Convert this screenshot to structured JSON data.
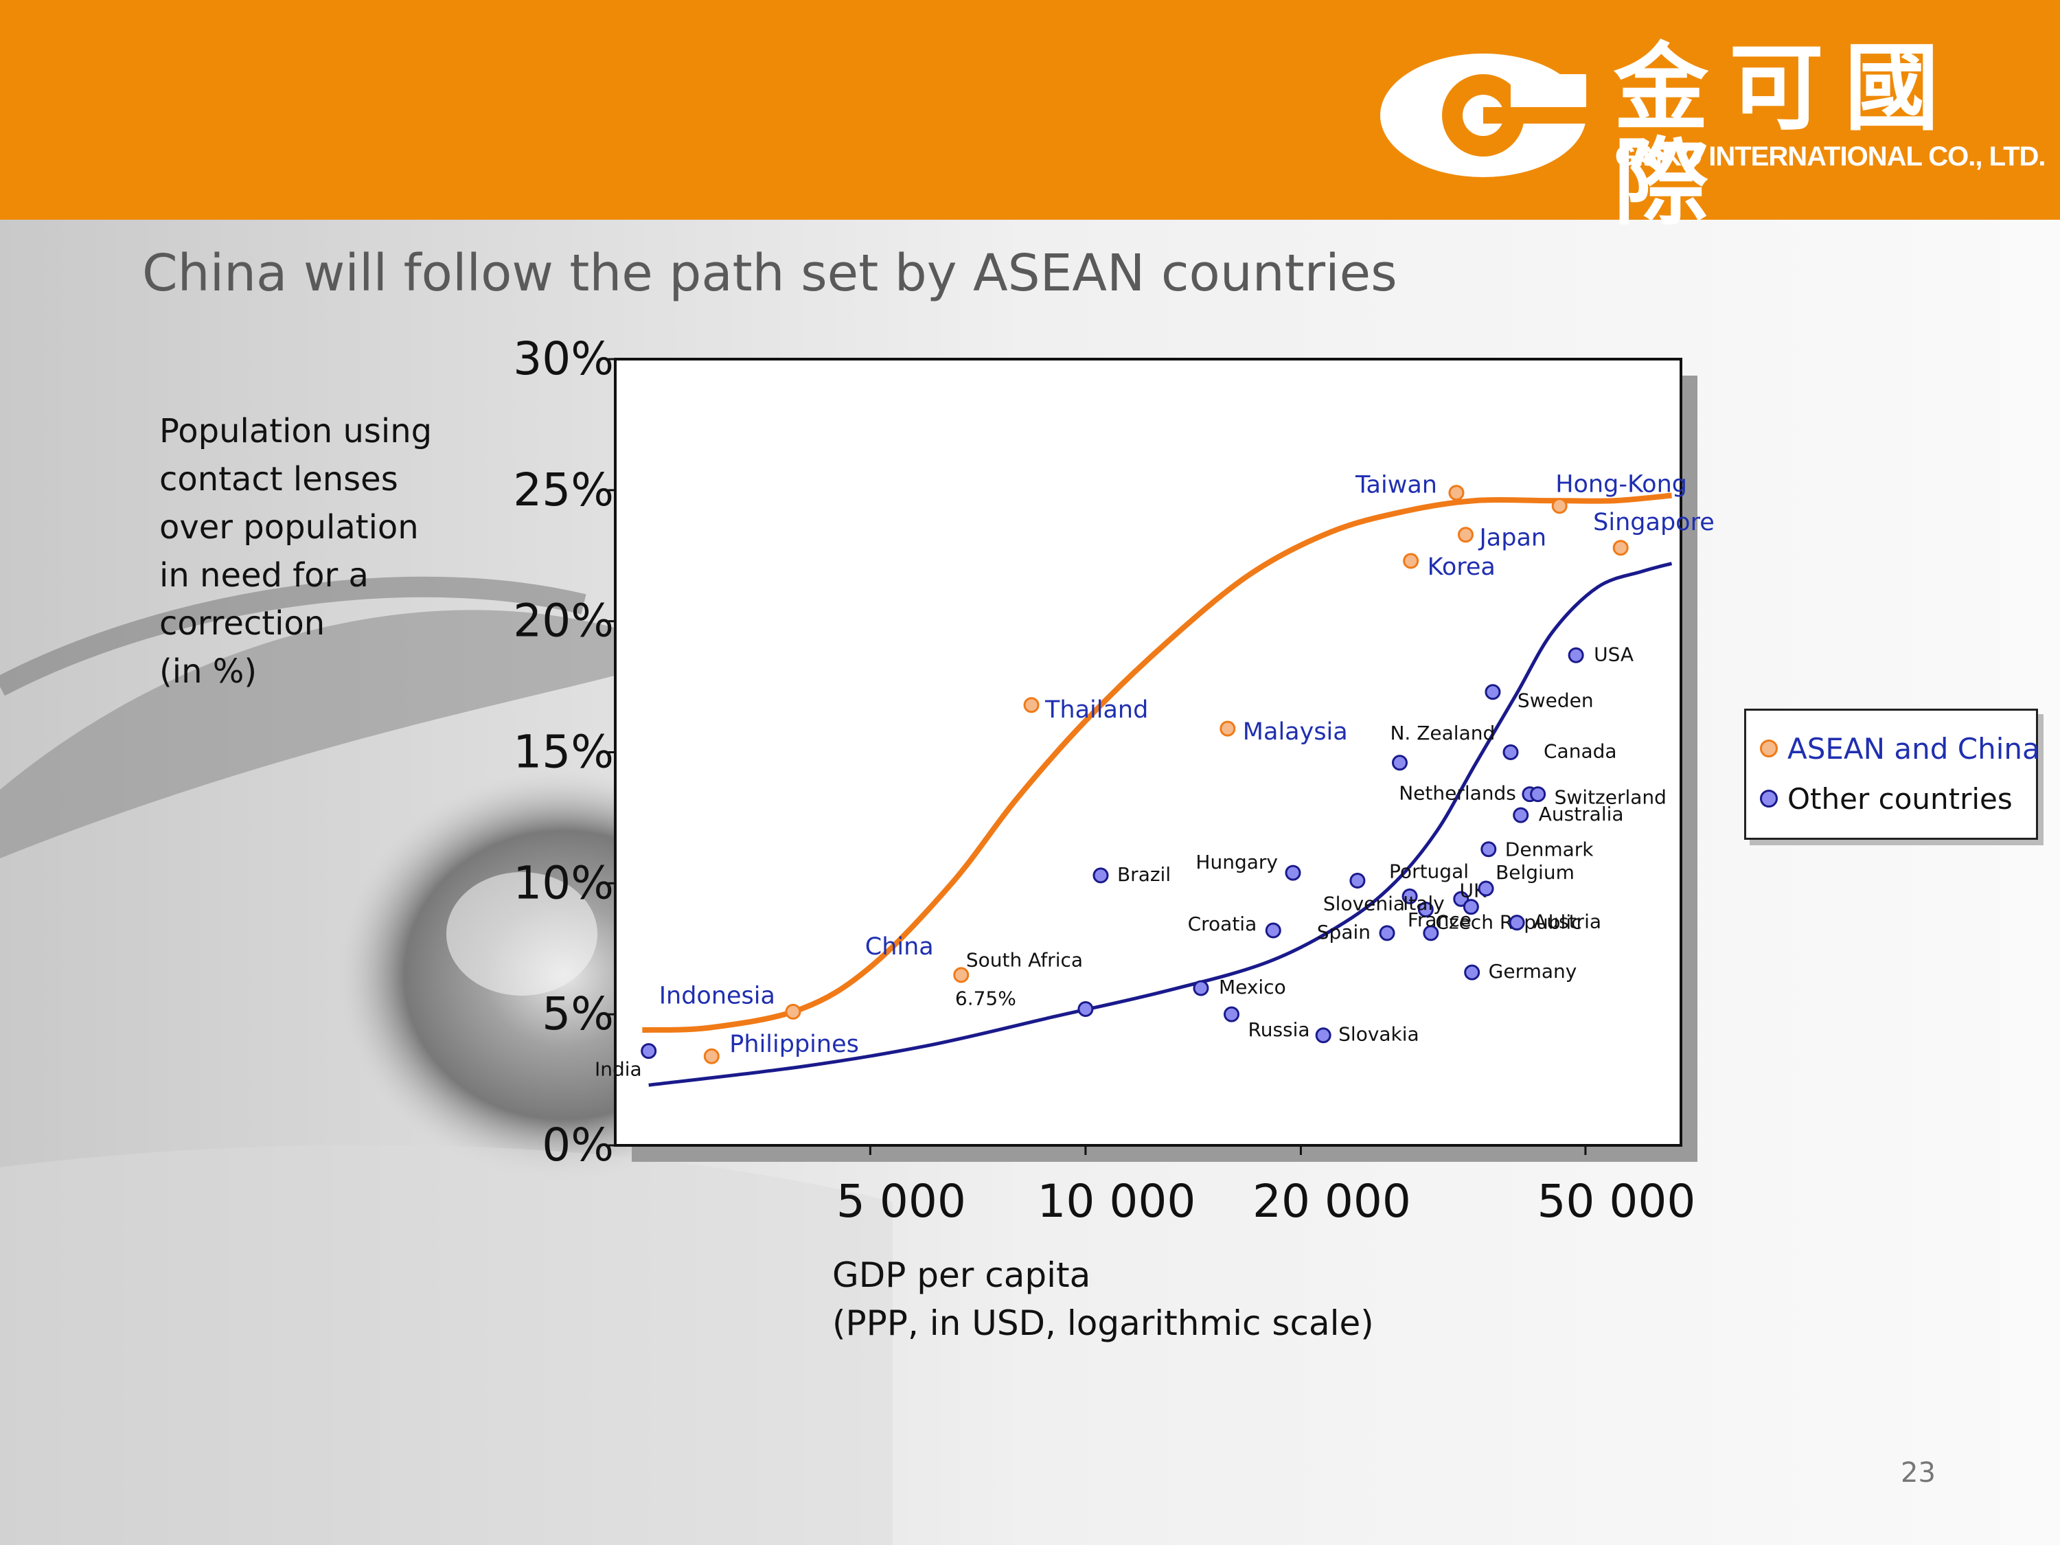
{
  "header": {
    "brand_cn": "金可國際",
    "brand_en": "GINKO INTERNATIONAL CO., LTD.",
    "logo_icon": "ginko-logo-icon",
    "color": "#ef8a07"
  },
  "slide": {
    "title": "China will follow the path set by ASEAN countries",
    "page_number": "23"
  },
  "colors": {
    "asean": "#f07a17",
    "asean_fill": "#f6b98a",
    "other": "#1a1a8c",
    "other_fill": "#8c8cf0",
    "asean_label": "#1f2fb0",
    "other_label": "#111111"
  },
  "chart_data": {
    "type": "scatter",
    "title": "China will follow the path set by ASEAN countries",
    "ylabel_lines": [
      "Population using",
      "contact lenses",
      "over population",
      "in need for a",
      "correction",
      "(in %)"
    ],
    "xlabel_lines": [
      "GDP per capita",
      "(PPP, in USD, logarithmic scale)"
    ],
    "x_scale": "log",
    "xlim": [
      2200,
      68000
    ],
    "ylim": [
      0,
      30
    ],
    "x_ticks": [
      5000,
      10000,
      20000,
      50000
    ],
    "x_tick_labels": [
      "5 000",
      "10 000",
      "20 000",
      "50 000"
    ],
    "y_ticks": [
      0,
      5,
      10,
      15,
      20,
      25,
      30
    ],
    "y_tick_labels": [
      "0%",
      "5%",
      "10%",
      "15%",
      "20%",
      "25%",
      "30%"
    ],
    "grid": false,
    "legend_position": "right",
    "series": [
      {
        "name": "ASEAN and China",
        "points": [
          {
            "label": "Philippines",
            "x": 3000,
            "y": 3.4
          },
          {
            "label": "Indonesia",
            "x": 3900,
            "y": 5.1
          },
          {
            "label": "China",
            "x": 6700,
            "y": 6.5
          },
          {
            "label": "Thailand",
            "x": 8400,
            "y": 16.8
          },
          {
            "label": "Malaysia",
            "x": 15800,
            "y": 15.9
          },
          {
            "label": "Korea",
            "x": 28500,
            "y": 22.3
          },
          {
            "label": "Taiwan",
            "x": 33000,
            "y": 24.9
          },
          {
            "label": "Japan",
            "x": 34000,
            "y": 23.3
          },
          {
            "label": "Hong-Kong",
            "x": 46000,
            "y": 24.4
          },
          {
            "label": "Singapore",
            "x": 56000,
            "y": 22.8
          }
        ],
        "trend": [
          [
            2400,
            4.4
          ],
          [
            3000,
            4.5
          ],
          [
            4000,
            5.2
          ],
          [
            5000,
            6.8
          ],
          [
            6500,
            10
          ],
          [
            8000,
            13.2
          ],
          [
            10000,
            16.2
          ],
          [
            13000,
            19.2
          ],
          [
            17000,
            21.8
          ],
          [
            22000,
            23.4
          ],
          [
            28000,
            24.2
          ],
          [
            35000,
            24.6
          ],
          [
            45000,
            24.6
          ],
          [
            55000,
            24.6
          ],
          [
            66000,
            24.8
          ]
        ]
      },
      {
        "name": "Other countries",
        "points": [
          {
            "label": "India",
            "x": 2450,
            "y": 3.6
          },
          {
            "label": "South Africa",
            "x": 10000,
            "y": 5.2
          },
          {
            "label": "Brazil",
            "x": 10500,
            "y": 10.3
          },
          {
            "label": "Mexico",
            "x": 14500,
            "y": 6.0
          },
          {
            "label": "Russia",
            "x": 16000,
            "y": 5.0
          },
          {
            "label": "Croatia",
            "x": 18300,
            "y": 8.2
          },
          {
            "label": "Hungary",
            "x": 19500,
            "y": 10.4
          },
          {
            "label": "Slovakia",
            "x": 21500,
            "y": 4.2
          },
          {
            "label": "Slovenia",
            "x": 24000,
            "y": 10.1
          },
          {
            "label": "Spain",
            "x": 26400,
            "y": 8.1
          },
          {
            "label": "N. Zealand",
            "x": 27500,
            "y": 14.6
          },
          {
            "label": "Portugal",
            "x": 28400,
            "y": 9.5
          },
          {
            "label": "Czech Republic",
            "x": 29900,
            "y": 9.0
          },
          {
            "label": "France",
            "x": 30400,
            "y": 8.1
          },
          {
            "label": "Italy",
            "x": 33500,
            "y": 9.4
          },
          {
            "label": "UK",
            "x": 34600,
            "y": 9.1
          },
          {
            "label": "Germany",
            "x": 34700,
            "y": 6.6
          },
          {
            "label": "Belgium",
            "x": 36300,
            "y": 9.8
          },
          {
            "label": "Denmark",
            "x": 36600,
            "y": 11.3
          },
          {
            "label": "Sweden",
            "x": 37100,
            "y": 17.3
          },
          {
            "label": "Canada",
            "x": 39300,
            "y": 15.0
          },
          {
            "label": "Austria",
            "x": 40100,
            "y": 8.5
          },
          {
            "label": "Australia",
            "x": 40600,
            "y": 12.6
          },
          {
            "label": "Netherlands",
            "x": 41800,
            "y": 13.4
          },
          {
            "label": "Switzerland",
            "x": 42900,
            "y": 13.4
          },
          {
            "label": "USA",
            "x": 48500,
            "y": 18.7
          }
        ],
        "trend": [
          [
            2450,
            2.3
          ],
          [
            4000,
            3.0
          ],
          [
            6000,
            3.8
          ],
          [
            9000,
            4.9
          ],
          [
            13000,
            5.9
          ],
          [
            18000,
            7.0
          ],
          [
            23000,
            8.5
          ],
          [
            27000,
            10.0
          ],
          [
            31000,
            12.0
          ],
          [
            35000,
            14.5
          ],
          [
            40000,
            17.2
          ],
          [
            45000,
            19.6
          ],
          [
            52000,
            21.3
          ],
          [
            60000,
            21.9
          ],
          [
            66000,
            22.2
          ]
        ]
      }
    ],
    "annotations": [
      {
        "text": "6.75%"
      }
    ]
  }
}
